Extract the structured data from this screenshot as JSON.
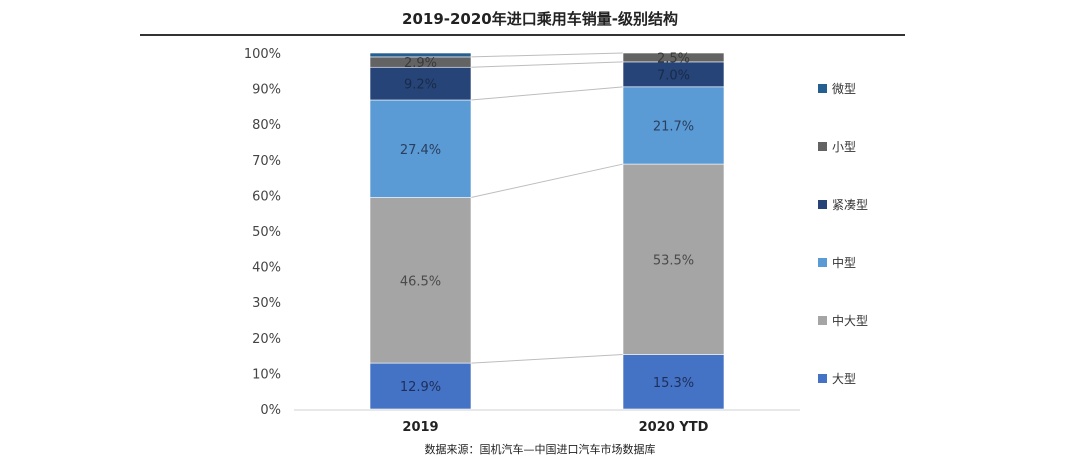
{
  "chart_data": {
    "type": "bar",
    "stacked": true,
    "title": "2019-2020年进口乘用车销量-级别结构",
    "source": "数据来源：国机汽车—中国进口汽车市场数据库",
    "categories": [
      "2019",
      "2020 YTD"
    ],
    "ylim": [
      0,
      100
    ],
    "yticks": [
      "0%",
      "10%",
      "20%",
      "30%",
      "40%",
      "50%",
      "60%",
      "70%",
      "80%",
      "90%",
      "100%"
    ],
    "series": [
      {
        "name": "大型",
        "color": "#4472c4",
        "values": [
          12.9,
          15.3
        ],
        "labels": [
          "12.9%",
          "15.3%"
        ],
        "label_color": "#1f2f5a"
      },
      {
        "name": "中大型",
        "color": "#a5a5a5",
        "values": [
          46.5,
          53.5
        ],
        "labels": [
          "46.5%",
          "53.5%"
        ],
        "label_color": "#4a4a4a"
      },
      {
        "name": "中型",
        "color": "#5b9bd5",
        "values": [
          27.4,
          21.7
        ],
        "labels": [
          "27.4%",
          "21.7%"
        ],
        "label_color": "#2a3f5e"
      },
      {
        "name": "紧凑型",
        "color": "#264478",
        "values": [
          9.2,
          7.0
        ],
        "labels": [
          "9.2%",
          "7.0%"
        ],
        "label_color": "#1a2a48"
      },
      {
        "name": "小型",
        "color": "#636363",
        "values": [
          2.9,
          2.5
        ],
        "labels": [
          "2.9%",
          "2.5%"
        ],
        "label_color": "#3a3a3a"
      },
      {
        "name": "微型",
        "color": "#255e91",
        "values": [
          1.1,
          0.0
        ],
        "labels": [
          "",
          ""
        ],
        "label_color": "#ffffff"
      }
    ]
  }
}
